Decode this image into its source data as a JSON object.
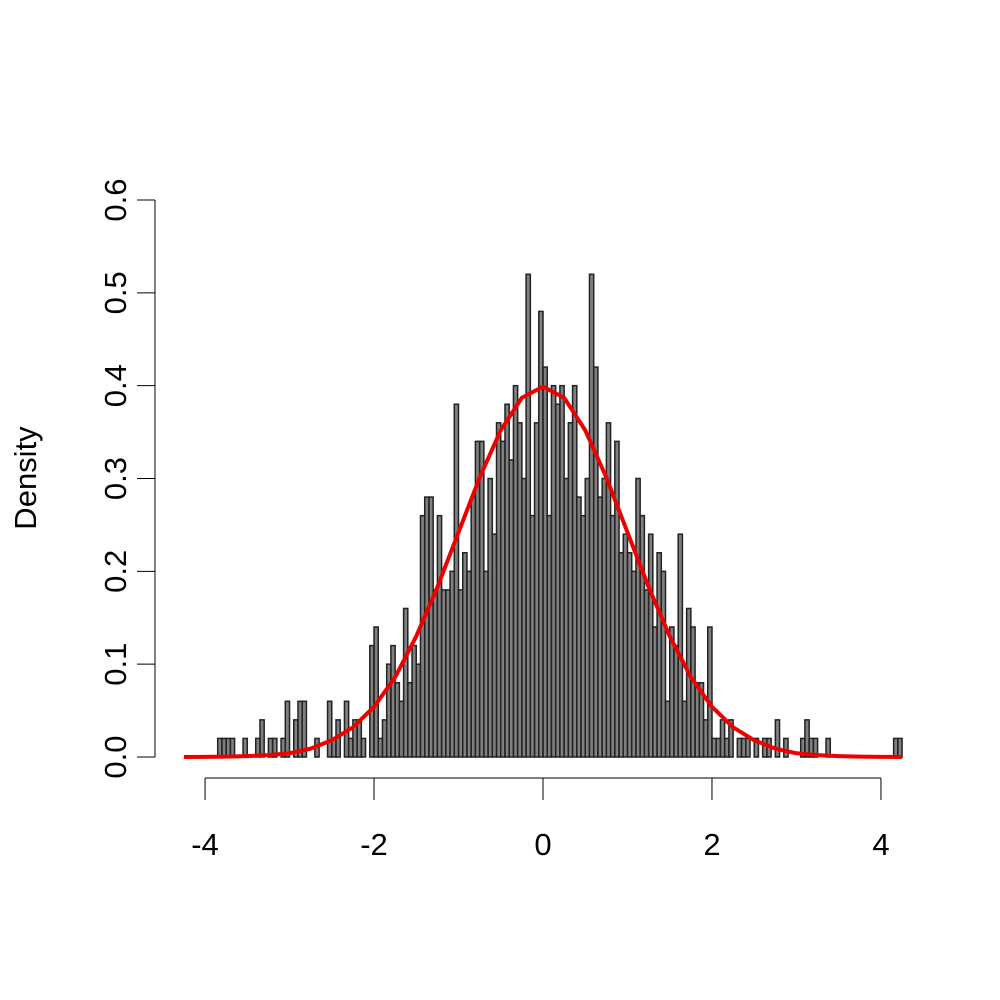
{
  "chart_data": {
    "type": "histogram",
    "y_label": "Density",
    "bins": [
      -3.85,
      -3.8,
      -3.75,
      -3.7,
      -3.65,
      -3.6,
      -3.55,
      -3.5,
      -3.45,
      -3.4,
      -3.35,
      -3.3,
      -3.25,
      -3.2,
      -3.15,
      -3.1,
      -3.05,
      -3,
      -2.95,
      -2.9,
      -2.85,
      -2.8,
      -2.75,
      -2.7,
      -2.65,
      -2.6,
      -2.55,
      -2.5,
      -2.45,
      -2.4,
      -2.35,
      -2.3,
      -2.25,
      -2.2,
      -2.15,
      -2.1,
      -2.05,
      -2,
      -1.95,
      -1.9,
      -1.85,
      -1.8,
      -1.75,
      -1.7,
      -1.65,
      -1.6,
      -1.55,
      -1.5,
      -1.45,
      -1.4,
      -1.35,
      -1.3,
      -1.25,
      -1.2,
      -1.15,
      -1.1,
      -1.05,
      -1,
      -0.95,
      -0.9,
      -0.85,
      -0.8,
      -0.75,
      -0.7,
      -0.65,
      -0.6,
      -0.55,
      -0.5,
      -0.45,
      -0.4,
      -0.35,
      -0.3,
      -0.25,
      -0.2,
      -0.15,
      -0.1,
      -0.05,
      0,
      0.05,
      0.1,
      0.15,
      0.2,
      0.25,
      0.3,
      0.35,
      0.4,
      0.45,
      0.5,
      0.55,
      0.6,
      0.65,
      0.7,
      0.75,
      0.8,
      0.85,
      0.9,
      0.95,
      1,
      1.05,
      1.1,
      1.15,
      1.2,
      1.25,
      1.3,
      1.35,
      1.4,
      1.45,
      1.5,
      1.55,
      1.6,
      1.65,
      1.7,
      1.75,
      1.8,
      1.85,
      1.9,
      1.95,
      2,
      2.05,
      2.1,
      2.15,
      2.2,
      2.25,
      2.3,
      2.35,
      2.4,
      2.45,
      2.5,
      2.55,
      2.6,
      2.65,
      2.7,
      2.75,
      2.8,
      2.85,
      2.9,
      2.95,
      3,
      3.05,
      3.1,
      3.15,
      3.2,
      3.25,
      3.3,
      3.35,
      3.4,
      3.45,
      3.5,
      3.55,
      3.6,
      3.65,
      3.7,
      3.75,
      3.8,
      3.85,
      3.9,
      3.95,
      4,
      4.05,
      4.1,
      4.15,
      4.2,
      4.25
    ],
    "values": [
      0.02,
      0.02,
      0.02,
      0.02,
      0,
      0,
      0.02,
      0,
      0,
      0.02,
      0.04,
      0,
      0.02,
      0.02,
      0,
      0.02,
      0.06,
      0,
      0.04,
      0.06,
      0.06,
      0,
      0,
      0.02,
      0,
      0,
      0.06,
      0.02,
      0.04,
      0,
      0.06,
      0.02,
      0.04,
      0.04,
      0.02,
      0,
      0.12,
      0.14,
      0.02,
      0.04,
      0.1,
      0.12,
      0.08,
      0.06,
      0.16,
      0.08,
      0.12,
      0.1,
      0.26,
      0.28,
      0.28,
      0.18,
      0.26,
      0.18,
      0.18,
      0.2,
      0.38,
      0.18,
      0.22,
      0.2,
      0.28,
      0.34,
      0.34,
      0.2,
      0.3,
      0.24,
      0.36,
      0.34,
      0.38,
      0.32,
      0.4,
      0.36,
      0.3,
      0.52,
      0.26,
      0.36,
      0.48,
      0.42,
      0.26,
      0.4,
      0.38,
      0.4,
      0.3,
      0.36,
      0.4,
      0.28,
      0.26,
      0.3,
      0.52,
      0.42,
      0.28,
      0.3,
      0.36,
      0.26,
      0.34,
      0.22,
      0.24,
      0.22,
      0.2,
      0.3,
      0.26,
      0.18,
      0.24,
      0.14,
      0.22,
      0.2,
      0.06,
      0.14,
      0.12,
      0.24,
      0.06,
      0.16,
      0.14,
      0.08,
      0.08,
      0.04,
      0.14,
      0.02,
      0.02,
      0.04,
      0.02,
      0.04,
      0,
      0.02,
      0.02,
      0.02,
      0,
      0.02,
      0,
      0.02,
      0.02,
      0,
      0.04,
      0,
      0.02,
      0,
      0,
      0,
      0.02,
      0.04,
      0.02,
      0.02,
      0,
      0,
      0.02,
      0,
      0,
      0,
      0,
      0,
      0,
      0,
      0,
      0,
      0,
      0,
      0,
      0,
      0,
      0,
      0.02,
      0.02
    ],
    "color": "#555555",
    "curve": {
      "color": "#ee0000",
      "x": [
        -4.25,
        -4,
        -3.75,
        -3.5,
        -3.25,
        -3,
        -2.75,
        -2.5,
        -2.25,
        -2,
        -1.75,
        -1.5,
        -1.25,
        -1,
        -0.75,
        -0.5,
        -0.25,
        0,
        0.25,
        0.5,
        0.75,
        1,
        1.25,
        1.5,
        1.75,
        2,
        2.25,
        2.5,
        2.75,
        3,
        3.25,
        3.5,
        3.75,
        4,
        4.25
      ],
      "values": [
        5e-05,
        0.0001,
        0.0004,
        0.001,
        0.002,
        0.004,
        0.009,
        0.018,
        0.032,
        0.054,
        0.086,
        0.13,
        0.183,
        0.242,
        0.301,
        0.352,
        0.387,
        0.399,
        0.387,
        0.352,
        0.301,
        0.242,
        0.183,
        0.13,
        0.086,
        0.054,
        0.032,
        0.018,
        0.009,
        0.004,
        0.002,
        0.001,
        0.0004,
        0.0001,
        5e-05
      ]
    },
    "xlim": [
      -4.32,
      4.32
    ],
    "ylim": [
      0,
      0.6
    ],
    "xticks": [
      -4,
      -2,
      0,
      2,
      4
    ],
    "yticks": [
      {
        "value": 0,
        "label": "0.0"
      },
      0.1,
      0.2,
      0.3,
      0.4,
      0.5,
      0.6
    ]
  }
}
